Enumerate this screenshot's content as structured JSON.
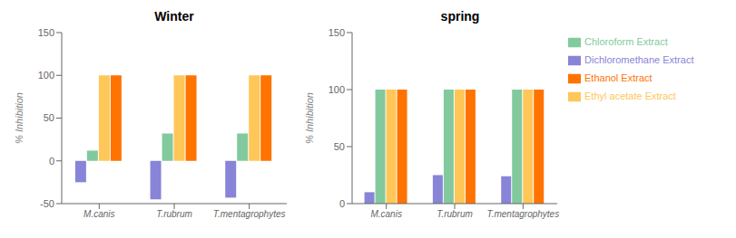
{
  "chart_data": [
    {
      "type": "bar",
      "title": "Winter",
      "ylabel": "% Inhibition",
      "categories": [
        "M.canis",
        "T.rubrum",
        "T.mentagrophytes"
      ],
      "series": [
        {
          "name": "Dichloromethane Extract",
          "color": "#8884d8",
          "values": [
            -25,
            -45,
            -43
          ]
        },
        {
          "name": "Chloroform Extract",
          "color": "#82ca9d",
          "values": [
            12,
            32,
            32
          ]
        },
        {
          "name": "Ethyl acetate Extract",
          "color": "#ffc658",
          "values": [
            100,
            100,
            100
          ]
        },
        {
          "name": "Ethanol Extract",
          "color": "#ff7300",
          "values": [
            100,
            100,
            100
          ]
        }
      ],
      "ylim": [
        -50,
        150
      ],
      "yticks": [
        -50,
        0,
        50,
        100,
        150
      ],
      "grid": false
    },
    {
      "type": "bar",
      "title": "spring",
      "ylabel": "% Inhibition",
      "categories": [
        "M.canis",
        "T.rubrum",
        "T.mentagrophytes"
      ],
      "series": [
        {
          "name": "Dichloromethane Extract",
          "color": "#8884d8",
          "values": [
            10,
            25,
            24
          ]
        },
        {
          "name": "Chloroform Extract",
          "color": "#82ca9d",
          "values": [
            100,
            100,
            100
          ]
        },
        {
          "name": "Ethyl acetate Extract",
          "color": "#ffc658",
          "values": [
            100,
            100,
            100
          ]
        },
        {
          "name": "Ethanol Extract",
          "color": "#ff7300",
          "values": [
            100,
            100,
            100
          ]
        }
      ],
      "ylim": [
        0,
        150
      ],
      "yticks": [
        0,
        50,
        100,
        150
      ],
      "grid": false,
      "legend": "upper right"
    }
  ]
}
